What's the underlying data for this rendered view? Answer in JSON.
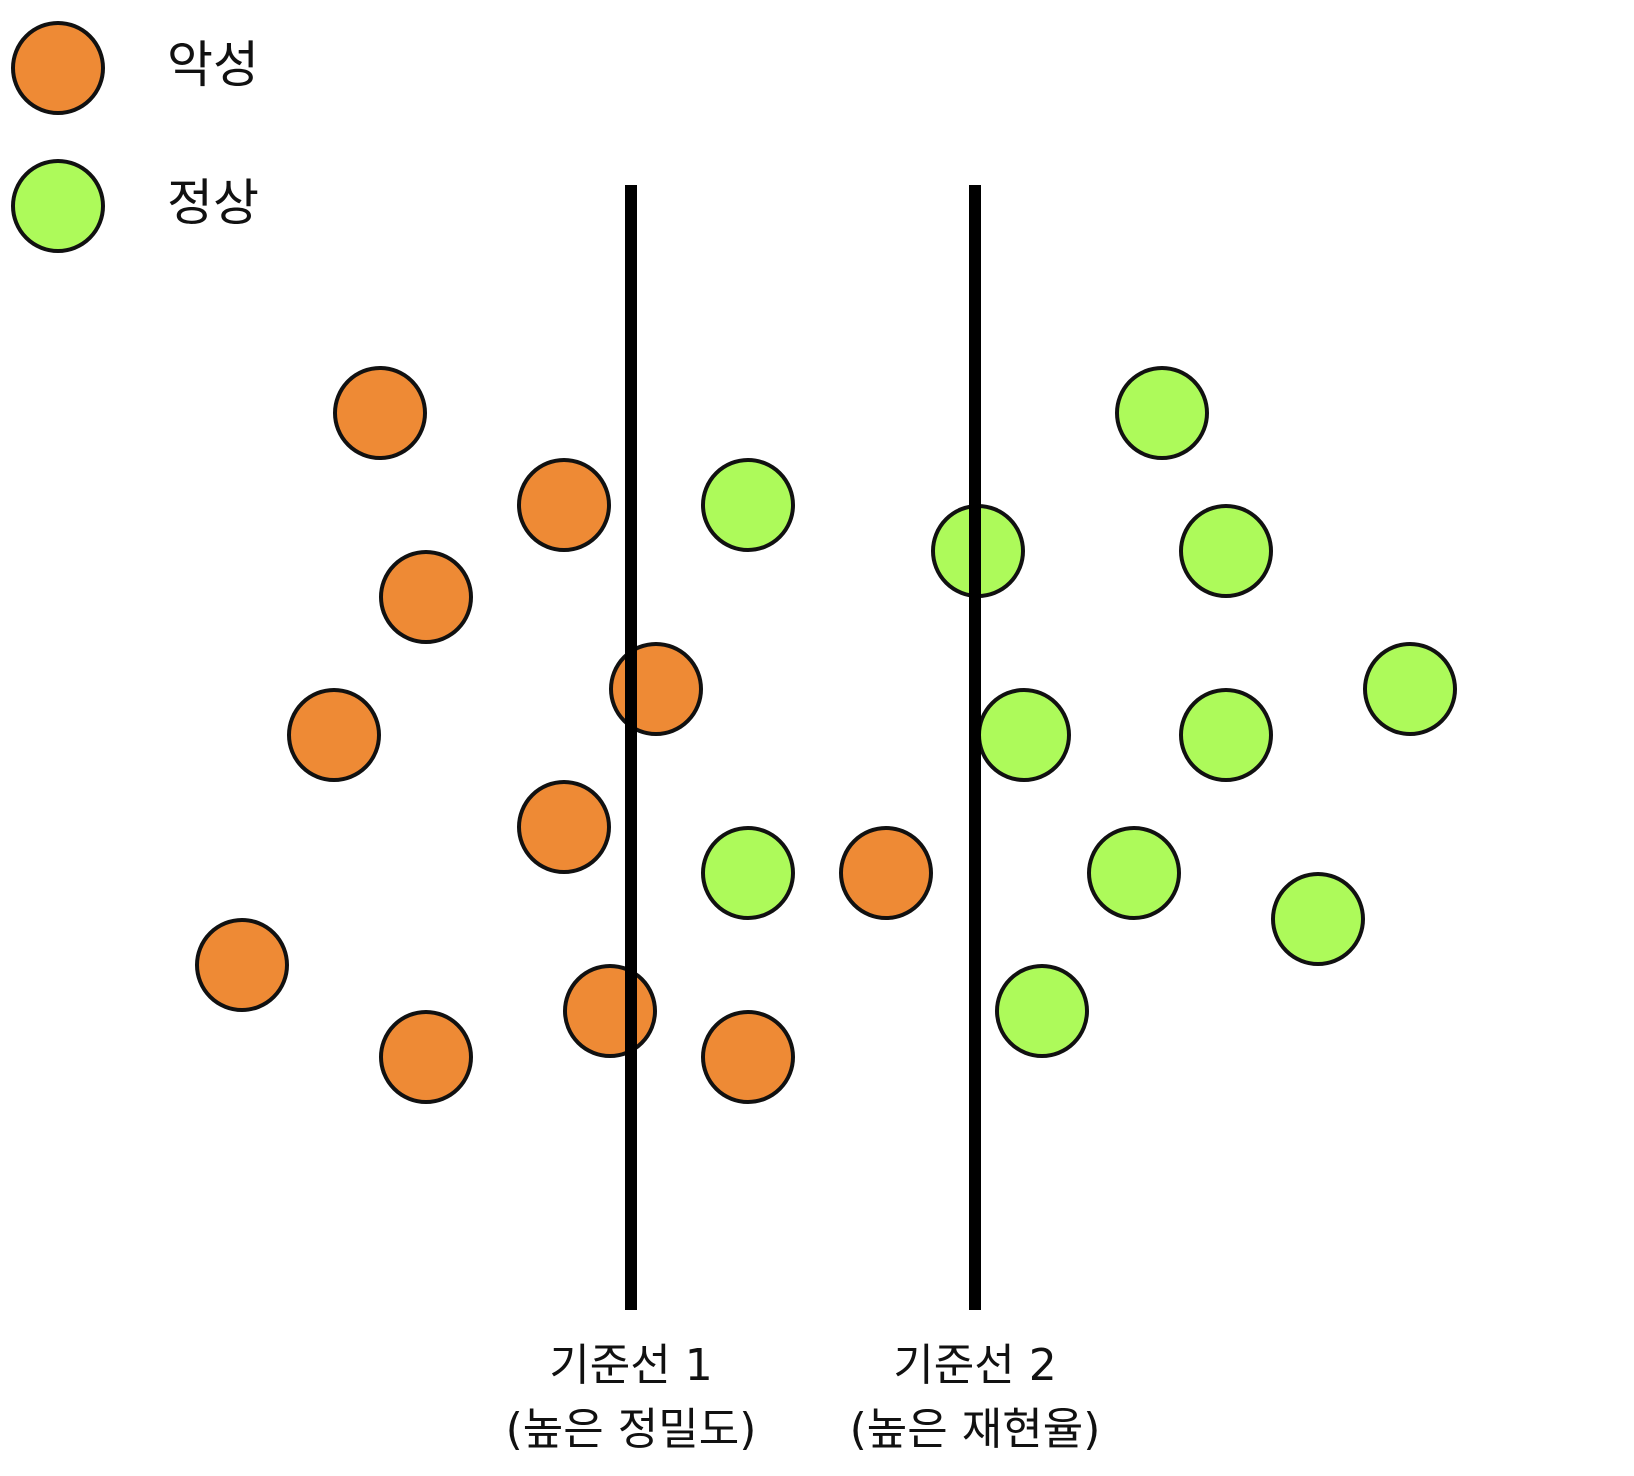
{
  "legend": {
    "malignant": {
      "label": "악성",
      "color": "#EE8A35"
    },
    "normal": {
      "label": "정상",
      "color": "#ADFA5A"
    }
  },
  "thresholds": [
    {
      "title": "기준선 1",
      "subtitle": "(높은 정밀도)"
    },
    {
      "title": "기준선 2",
      "subtitle": "(높은 재현율)"
    }
  ],
  "points": [
    {
      "class": "malignant"
    },
    {
      "class": "malignant"
    },
    {
      "class": "malignant"
    },
    {
      "class": "malignant"
    },
    {
      "class": "malignant"
    },
    {
      "class": "malignant"
    },
    {
      "class": "malignant"
    },
    {
      "class": "malignant"
    },
    {
      "class": "malignant"
    },
    {
      "class": "malignant"
    },
    {
      "class": "malignant"
    },
    {
      "class": "normal"
    },
    {
      "class": "normal"
    },
    {
      "class": "normal"
    },
    {
      "class": "normal"
    },
    {
      "class": "normal"
    },
    {
      "class": "normal"
    },
    {
      "class": "normal"
    },
    {
      "class": "normal"
    },
    {
      "class": "normal"
    },
    {
      "class": "normal"
    },
    {
      "class": "normal"
    }
  ]
}
